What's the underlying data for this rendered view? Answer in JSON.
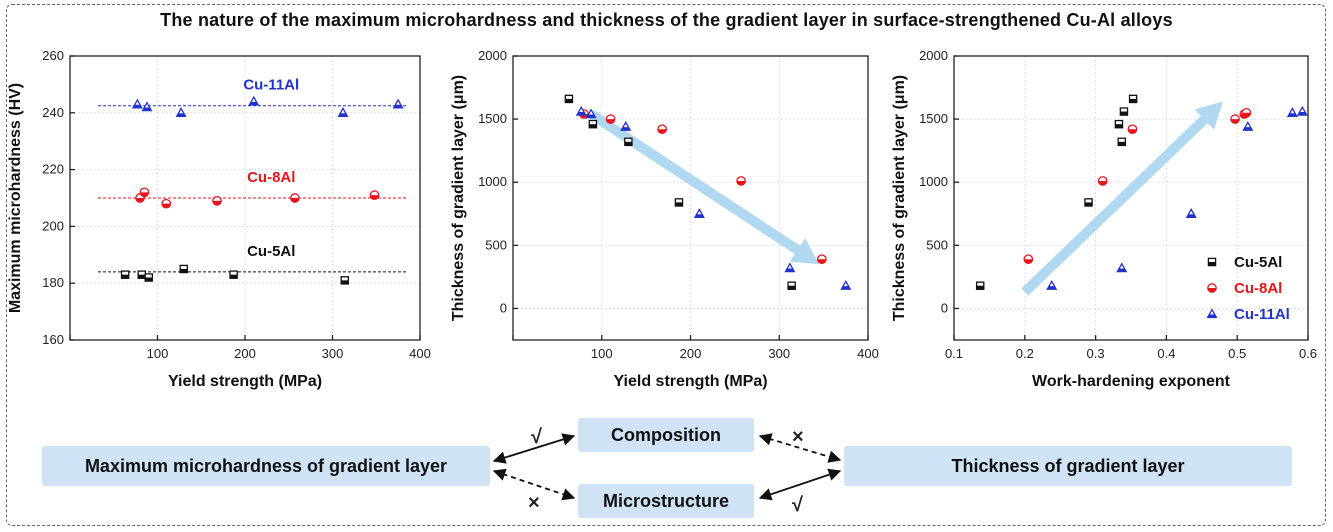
{
  "title": "The nature of the maximum microhardness and thickness of the gradient layer in surface-strengthened Cu-Al alloys",
  "colors": {
    "cu5": "#111111",
    "cu8": "#e8141b",
    "cu11": "#2233cc",
    "arrow": "#a9d4f0",
    "box": "#cfe3f5"
  },
  "chart_data": [
    {
      "type": "scatter",
      "xlabel": "Yield strength (MPa)",
      "ylabel": "Maximum microhardness (HV)",
      "xlim": [
        0,
        400
      ],
      "ylim": [
        160,
        260
      ],
      "xticks": [
        "0",
        "100",
        "200",
        "300",
        "400"
      ],
      "yticks": [
        "160",
        "180",
        "200",
        "220",
        "240",
        "260"
      ],
      "xtick_values": [
        0,
        100,
        200,
        300,
        400
      ],
      "ytick_values": [
        160,
        180,
        200,
        220,
        240,
        260
      ],
      "show_first_xtick": false,
      "grid": true,
      "series": [
        {
          "name": "Cu-5Al",
          "marker": "square",
          "hline": 184,
          "points": [
            [
              63,
              183
            ],
            [
              82,
              183
            ],
            [
              90,
              182
            ],
            [
              130,
              185
            ],
            [
              187,
              183
            ],
            [
              314,
              181
            ]
          ]
        },
        {
          "name": "Cu-8Al",
          "marker": "circle",
          "hline": 210,
          "points": [
            [
              80,
              210
            ],
            [
              85,
              212
            ],
            [
              110,
              208
            ],
            [
              168,
              209
            ],
            [
              257,
              210
            ],
            [
              348,
              211
            ]
          ]
        },
        {
          "name": "Cu-11Al",
          "marker": "triangle",
          "hline": 242.5,
          "points": [
            [
              77,
              243
            ],
            [
              88,
              242
            ],
            [
              127,
              240
            ],
            [
              210,
              244
            ],
            [
              312,
              240
            ],
            [
              375,
              243
            ]
          ]
        }
      ],
      "annotations": [
        "Cu-11Al",
        "Cu-8Al",
        "Cu-5Al"
      ]
    },
    {
      "type": "scatter",
      "xlabel": "Yield strength (MPa)",
      "ylabel": "Thickness of gradient layer (μm)",
      "xlim": [
        0,
        400
      ],
      "ylim": [
        -250,
        2000
      ],
      "xticks": [
        "0",
        "100",
        "200",
        "300",
        "400"
      ],
      "yticks": [
        "0",
        "500",
        "1000",
        "1500",
        "2000"
      ],
      "xtick_values": [
        0,
        100,
        200,
        300,
        400
      ],
      "ytick_values": [
        0,
        500,
        1000,
        1500,
        2000
      ],
      "show_first_xtick": false,
      "grid": true,
      "trend_arrow": {
        "from": [
          88,
          1540
        ],
        "to": [
          345,
          350
        ]
      },
      "series": [
        {
          "name": "Cu-5Al",
          "marker": "square",
          "points": [
            [
              63,
              1660
            ],
            [
              90,
              1460
            ],
            [
              130,
              1320
            ],
            [
              187,
              840
            ],
            [
              314,
              180
            ]
          ]
        },
        {
          "name": "Cu-8Al",
          "marker": "circle",
          "points": [
            [
              80,
              1540
            ],
            [
              110,
              1500
            ],
            [
              168,
              1420
            ],
            [
              257,
              1010
            ],
            [
              348,
              390
            ]
          ]
        },
        {
          "name": "Cu-11Al",
          "marker": "triangle",
          "points": [
            [
              77,
              1560
            ],
            [
              88,
              1540
            ],
            [
              127,
              1440
            ],
            [
              210,
              750
            ],
            [
              312,
              320
            ],
            [
              375,
              180
            ]
          ]
        }
      ]
    },
    {
      "type": "scatter",
      "xlabel": "Work-hardening exponent",
      "ylabel": "Thickness of gradient layer (μm)",
      "xlim": [
        0.1,
        0.6
      ],
      "ylim": [
        -250,
        2000
      ],
      "xticks": [
        "0.1",
        "0.2",
        "0.3",
        "0.4",
        "0.5",
        "0.6"
      ],
      "yticks": [
        "0",
        "500",
        "1000",
        "1500",
        "2000"
      ],
      "xtick_values": [
        0.1,
        0.2,
        0.3,
        0.4,
        0.5,
        0.6
      ],
      "ytick_values": [
        0,
        500,
        1000,
        1500,
        2000
      ],
      "show_first_xtick": true,
      "grid": true,
      "legend": "right",
      "trend_arrow": {
        "from": [
          0.2,
          130
        ],
        "to": [
          0.48,
          1640
        ]
      },
      "series": [
        {
          "name": "Cu-5Al",
          "marker": "square",
          "points": [
            [
              0.137,
              180
            ],
            [
              0.29,
              840
            ],
            [
              0.333,
              1460
            ],
            [
              0.337,
              1320
            ],
            [
              0.34,
              1560
            ],
            [
              0.353,
              1660
            ]
          ]
        },
        {
          "name": "Cu-8Al",
          "marker": "circle",
          "points": [
            [
              0.205,
              390
            ],
            [
              0.31,
              1010
            ],
            [
              0.352,
              1420
            ],
            [
              0.497,
              1500
            ],
            [
              0.51,
              1540
            ],
            [
              0.513,
              1550
            ]
          ]
        },
        {
          "name": "Cu-11Al",
          "marker": "triangle",
          "points": [
            [
              0.238,
              180
            ],
            [
              0.337,
              320
            ],
            [
              0.435,
              750
            ],
            [
              0.515,
              1440
            ],
            [
              0.578,
              1550
            ],
            [
              0.592,
              1560
            ]
          ]
        }
      ]
    }
  ],
  "diagram": {
    "left_box": "Maximum microhardness of gradient layer",
    "right_box": "Thickness of  gradient layer",
    "top_box": "Composition",
    "bottom_box": "Microstructure",
    "check": "√",
    "cross": "×"
  }
}
